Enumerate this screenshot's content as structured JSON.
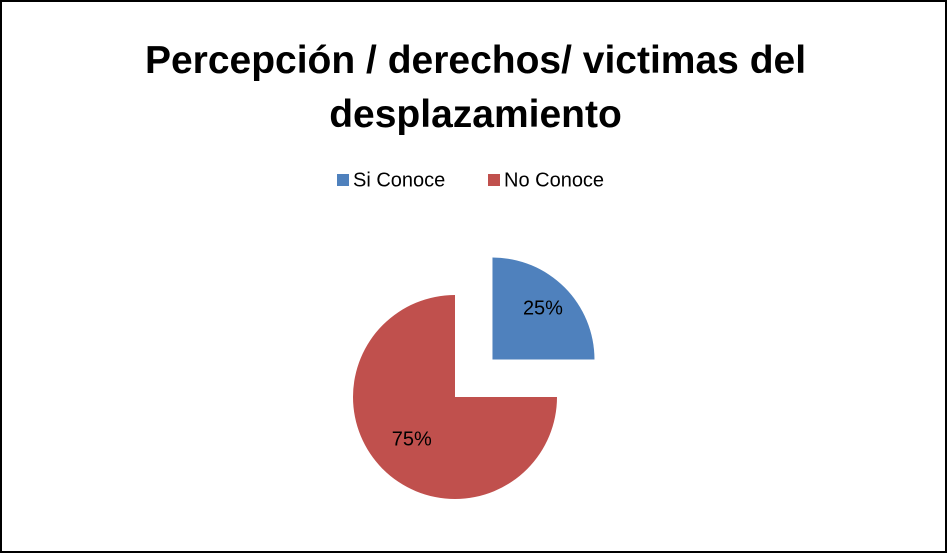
{
  "chart_data": {
    "type": "pie",
    "title": "Percepción / derechos/ victimas del desplazamiento",
    "categories": [
      "Si Conoce",
      "No Conoce"
    ],
    "values": [
      25,
      75
    ],
    "value_labels": [
      "25%",
      "75%"
    ],
    "colors": [
      "#4f81bd",
      "#c0504d"
    ],
    "legend": "top"
  }
}
